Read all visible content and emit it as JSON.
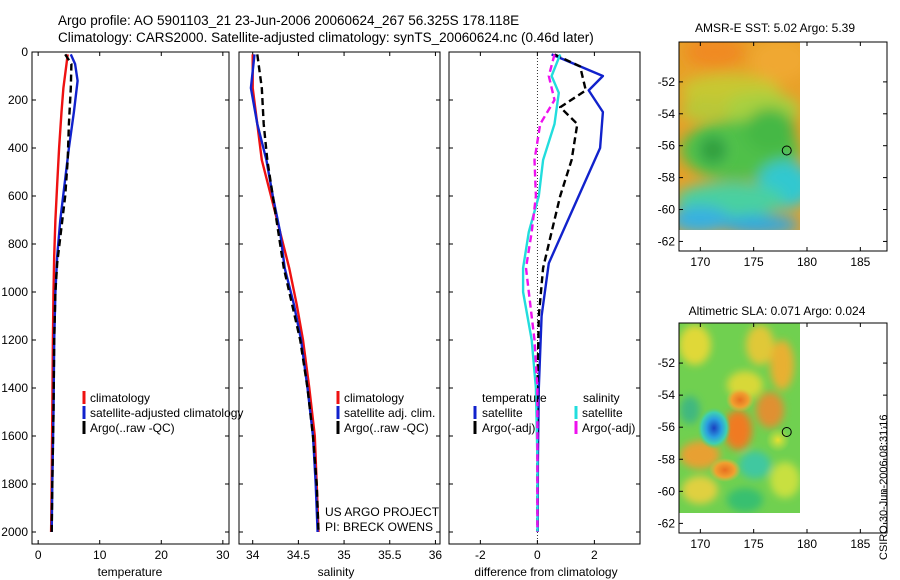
{
  "header": {
    "line1": "Argo profile: AO 5901103_21 23-Jun-2006 20060624_267 56.325S 178.118E",
    "line2": "Climatology: CARS2000. Satellite-adjusted climatology: synTS_20060624.nc (0.46d later)"
  },
  "footer_stamp": "CSIRO 30-Jun-2006 08:31:16",
  "colors": {
    "red": "#ee1111",
    "blue": "#1122cc",
    "black": "#000000",
    "cyan": "#22dddd",
    "magenta": "#ee11ee"
  },
  "chart_data": [
    {
      "type": "line",
      "xlabel": "temperature",
      "xlim": [
        -1,
        31
      ],
      "xticks": [
        0,
        10,
        20,
        30
      ],
      "ylim": [
        0,
        2050
      ],
      "yticks": [
        0,
        200,
        400,
        600,
        800,
        1000,
        1200,
        1400,
        1600,
        1800,
        2000
      ],
      "yreversed": true,
      "legend": {
        "position": "lower-right",
        "entries": [
          "climatology",
          "satellite-adjusted climatology",
          "Argo(..raw -QC)"
        ]
      },
      "series": [
        {
          "name": "climatology",
          "color": "red",
          "dash": "solid",
          "x": [
            4.8,
            4.6,
            4.1,
            3.8,
            3.4,
            3.1,
            2.8,
            2.6,
            2.5,
            2.4,
            2.3,
            2.2,
            2.1
          ],
          "y": [
            10,
            50,
            150,
            250,
            400,
            550,
            700,
            850,
            1000,
            1200,
            1500,
            1800,
            2000
          ]
        },
        {
          "name": "satellite-adjusted climatology",
          "color": "blue",
          "dash": "solid",
          "x": [
            5.3,
            6.0,
            6.4,
            5.8,
            5.0,
            4.3,
            3.6,
            3.1,
            2.8,
            2.6,
            2.5,
            2.3,
            2.2
          ],
          "y": [
            10,
            50,
            120,
            250,
            400,
            550,
            700,
            850,
            1000,
            1200,
            1500,
            1800,
            2000
          ]
        },
        {
          "name": "Argo(..raw -QC)",
          "color": "black",
          "dash": "dashed",
          "x": [
            4.4,
            5.4,
            5.3,
            5.0,
            4.8,
            4.4,
            3.7,
            3.1,
            2.8,
            2.6,
            2.5,
            2.3,
            2.2
          ],
          "y": [
            10,
            50,
            150,
            300,
            450,
            600,
            750,
            880,
            1000,
            1200,
            1500,
            1800,
            2000
          ]
        }
      ]
    },
    {
      "type": "line",
      "xlabel": "salinity",
      "xlim": [
        33.85,
        36.05
      ],
      "xticks": [
        34,
        34.5,
        35,
        35.5,
        36
      ],
      "ylim": [
        0,
        2050
      ],
      "yreversed": true,
      "legend": {
        "position": "lower-right",
        "entries": [
          "climatology",
          "satellite adj. clim.",
          "Argo(..raw -QC)"
        ]
      },
      "annotations": [
        "US ARGO PROJECT",
        "PI: BRECK OWENS"
      ],
      "series": [
        {
          "name": "climatology",
          "color": "red",
          "dash": "solid",
          "x": [
            34.0,
            34.0,
            34.05,
            34.1,
            34.2,
            34.3,
            34.4,
            34.48,
            34.55,
            34.62,
            34.68,
            34.7,
            34.72
          ],
          "y": [
            10,
            150,
            300,
            450,
            600,
            750,
            900,
            1050,
            1200,
            1400,
            1600,
            1800,
            2000
          ]
        },
        {
          "name": "satellite adj. clim.",
          "color": "blue",
          "dash": "solid",
          "x": [
            34.02,
            33.98,
            34.05,
            34.15,
            34.22,
            34.3,
            34.35,
            34.45,
            34.53,
            34.6,
            34.66,
            34.69,
            34.71
          ],
          "y": [
            10,
            150,
            300,
            450,
            600,
            750,
            900,
            1050,
            1200,
            1400,
            1600,
            1800,
            2000
          ]
        },
        {
          "name": "Argo(..raw -QC)",
          "color": "black",
          "dash": "dashed",
          "x": [
            34.05,
            34.1,
            34.12,
            34.16,
            34.22,
            34.28,
            34.34,
            34.43,
            34.52,
            34.6,
            34.66,
            34.7,
            34.72
          ],
          "y": [
            10,
            150,
            300,
            450,
            600,
            750,
            900,
            1050,
            1200,
            1400,
            1600,
            1800,
            2000
          ]
        }
      ]
    },
    {
      "type": "line",
      "xlabel": "difference from climatology",
      "xlim": [
        -3.1,
        3.6
      ],
      "xticks": [
        -2,
        0,
        2
      ],
      "ylim": [
        0,
        2050
      ],
      "yreversed": true,
      "legend": {
        "position": "lower-center",
        "col_headers": [
          "temperature",
          "salinity"
        ],
        "entries": [
          "satellite",
          "Argo(-adj)",
          "satellite",
          "Argo(-adj)"
        ]
      },
      "series": [
        {
          "name": "satellite",
          "group": "temperature",
          "color": "blue",
          "dash": "solid",
          "x": [
            0.5,
            1.5,
            2.3,
            1.8,
            2.3,
            2.2,
            1.6,
            1.0,
            0.4,
            0.15,
            0.05,
            0.02,
            0.01
          ],
          "y": [
            10,
            60,
            100,
            160,
            250,
            400,
            560,
            720,
            880,
            1100,
            1400,
            1700,
            2000
          ]
        },
        {
          "name": "Argo(-adj)",
          "group": "temperature",
          "color": "black",
          "dash": "dashed",
          "x": [
            0.6,
            1.5,
            1.7,
            0.8,
            1.4,
            1.2,
            0.8,
            0.5,
            0.2,
            0.05,
            0.0,
            0.0,
            0.0
          ],
          "y": [
            10,
            60,
            160,
            230,
            300,
            450,
            600,
            750,
            900,
            1100,
            1400,
            1700,
            2000
          ]
        },
        {
          "name": "satellite",
          "group": "salinity",
          "color": "cyan",
          "dash": "solid",
          "x": [
            0.8,
            0.5,
            0.75,
            0.6,
            0.2,
            0.05,
            -0.3,
            -0.5,
            -0.5,
            -0.2,
            -0.05,
            0.0,
            0.0
          ],
          "y": [
            10,
            100,
            170,
            300,
            450,
            600,
            750,
            900,
            1000,
            1200,
            1400,
            1700,
            2000
          ]
        },
        {
          "name": "Argo(-adj)",
          "group": "salinity",
          "color": "magenta",
          "dash": "dashed",
          "x": [
            0.6,
            0.4,
            0.6,
            0.1,
            -0.1,
            -0.05,
            -0.2,
            -0.4,
            -0.3,
            -0.1,
            0.0,
            0.0,
            0.0
          ],
          "y": [
            10,
            100,
            200,
            300,
            450,
            600,
            750,
            900,
            1000,
            1200,
            1400,
            1700,
            2000
          ]
        }
      ]
    },
    {
      "type": "heatmap",
      "title": "AMSR-E SST: 5.02 Argo: 5.39",
      "xlim": [
        168,
        187.5
      ],
      "ylim": [
        -62.6,
        -49.5
      ],
      "xticks": [
        170,
        175,
        180,
        185
      ],
      "yticks": [
        -52,
        -54,
        -56,
        -58,
        -60,
        -62
      ],
      "data_extent": {
        "lon": [
          169,
          180
        ],
        "lat": [
          -60,
          -49.5
        ]
      },
      "marker": {
        "lon": 178.1,
        "lat": -56.3
      }
    },
    {
      "type": "heatmap",
      "title": "Altimetric SLA: 0.071 Argo: 0.024",
      "xlim": [
        168,
        187.5
      ],
      "ylim": [
        -62.6,
        -49.5
      ],
      "xticks": [
        170,
        175,
        180,
        185
      ],
      "yticks": [
        -52,
        -54,
        -56,
        -58,
        -60,
        -62
      ],
      "data_extent": {
        "lon": [
          169,
          180
        ],
        "lat": [
          -60,
          -49.5
        ]
      },
      "marker": {
        "lon": 178.1,
        "lat": -56.3
      }
    }
  ]
}
